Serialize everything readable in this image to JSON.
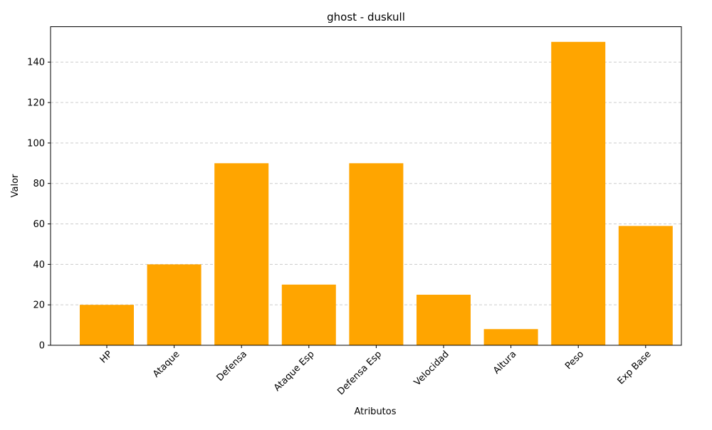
{
  "chart_data": {
    "type": "bar",
    "title": "ghost - duskull",
    "xlabel": "Atributos",
    "ylabel": "Valor",
    "categories": [
      "HP",
      "Ataque",
      "Defensa",
      "Ataque Esp",
      "Defensa Esp",
      "Velocidad",
      "Altura",
      "Peso",
      "Exp Base"
    ],
    "values": [
      20,
      40,
      90,
      30,
      90,
      25,
      8,
      150,
      59
    ],
    "yticks": [
      0,
      20,
      40,
      60,
      80,
      100,
      120,
      140
    ],
    "ylim": [
      0,
      157.5
    ],
    "bar_color": "#ffa500",
    "grid": "y-axis, dashed",
    "legend": "none"
  }
}
